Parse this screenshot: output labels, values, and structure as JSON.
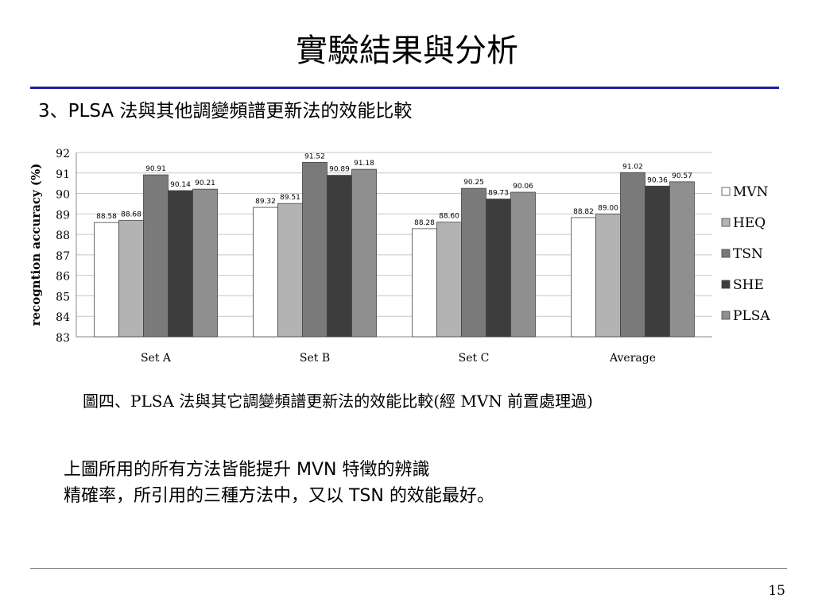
{
  "slide": {
    "title": "實驗結果與分析",
    "subtitle": "3、PLSA 法與其他調變頻譜更新法的效能比較",
    "caption": "圖四、PLSA 法與其它調變頻譜更新法的效能比較(經 MVN 前置處理過)",
    "body_line1": "上圖所用的所有方法皆能提升 MVN 特徵的辨識",
    "body_line2": "精確率，所引用的三種方法中，又以 TSN 的效能最好。",
    "page_number": "15",
    "rule_color": "#1f1f9e"
  },
  "chart_data": {
    "type": "bar",
    "categories": [
      "Set A",
      "Set B",
      "Set C",
      "Average"
    ],
    "ylabel": "recogntion accuracy (%)",
    "xlabel": "",
    "ylim": [
      83,
      92
    ],
    "yticks": [
      83,
      84,
      85,
      86,
      87,
      88,
      89,
      90,
      91,
      92
    ],
    "grid": true,
    "legend_position": "right",
    "series": [
      {
        "name": "MVN",
        "color": "#ffffff",
        "values": [
          88.58,
          89.32,
          88.28,
          88.82
        ],
        "labels": [
          "88.58",
          "89.32",
          "88.28",
          "88.82"
        ]
      },
      {
        "name": "HEQ",
        "color": "#b3b3b3",
        "values": [
          88.68,
          89.51,
          88.6,
          89.0
        ],
        "labels": [
          "88.68",
          "89.51",
          "88.60",
          "89.00"
        ]
      },
      {
        "name": "TSN",
        "color": "#7a7a7a",
        "values": [
          90.91,
          91.52,
          90.25,
          91.02
        ],
        "labels": [
          "90.91",
          "91.52",
          "90.25",
          "91.02"
        ]
      },
      {
        "name": "SHE",
        "color": "#3d3d3d",
        "values": [
          90.14,
          90.89,
          89.73,
          90.36
        ],
        "labels": [
          "90.14",
          "90.89",
          "89.73",
          "90.36"
        ]
      },
      {
        "name": "PLSA",
        "color": "#8f8f8f",
        "values": [
          90.21,
          91.18,
          90.06,
          90.57
        ],
        "labels": [
          "90.21",
          "91.18",
          "90.06",
          "90.57"
        ]
      }
    ]
  }
}
